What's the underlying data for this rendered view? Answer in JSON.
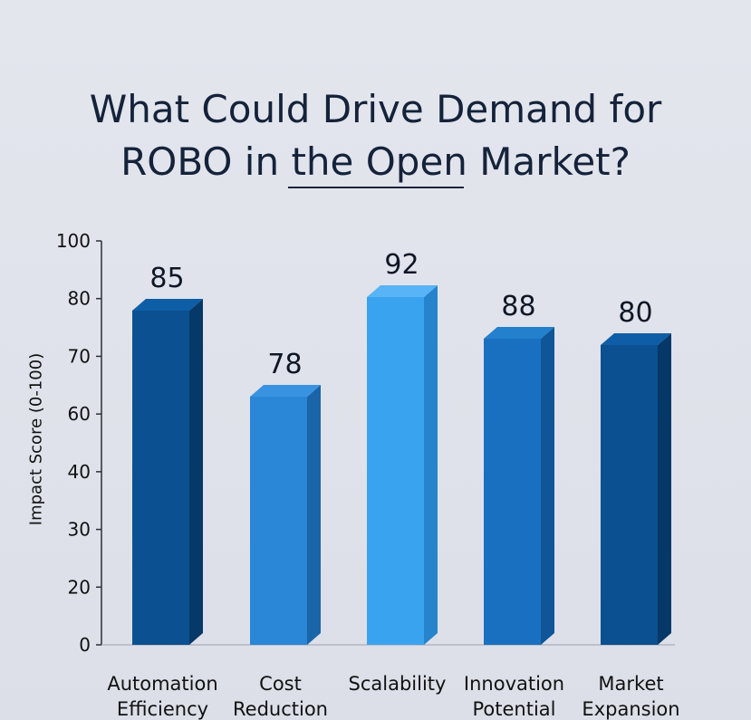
{
  "title_line1": "What Could Drive Demand for",
  "title_line2": "ROBO in the Open Market?",
  "chart_data": {
    "type": "bar",
    "title": "What Could Drive Demand for ROBO in the Open Market?",
    "ylabel": "Impact Score (0-100)",
    "xlabel": "",
    "y_ticks": [
      "0",
      "20",
      "30",
      "40",
      "60",
      "70",
      "80",
      "100"
    ],
    "categories": [
      [
        "Automation",
        "Efficiency"
      ],
      [
        "Cost",
        "Reduction"
      ],
      [
        "Scalability"
      ],
      [
        "Innovation",
        "Potential"
      ],
      [
        "Market",
        "Expansion"
      ]
    ],
    "values": [
      85,
      78,
      92,
      88,
      80
    ],
    "colors": {
      "front": [
        "#0b5090",
        "#2a86d6",
        "#3aa3f0",
        "#1a70c0",
        "#0b5090"
      ],
      "side": [
        "#063868",
        "#1a64a8",
        "#2584cc",
        "#0f5598",
        "#063868"
      ],
      "top": [
        "#0d5ea6",
        "#3a93e0",
        "#58b4f6",
        "#2280cc",
        "#0d5ea6"
      ]
    },
    "grid": false
  }
}
